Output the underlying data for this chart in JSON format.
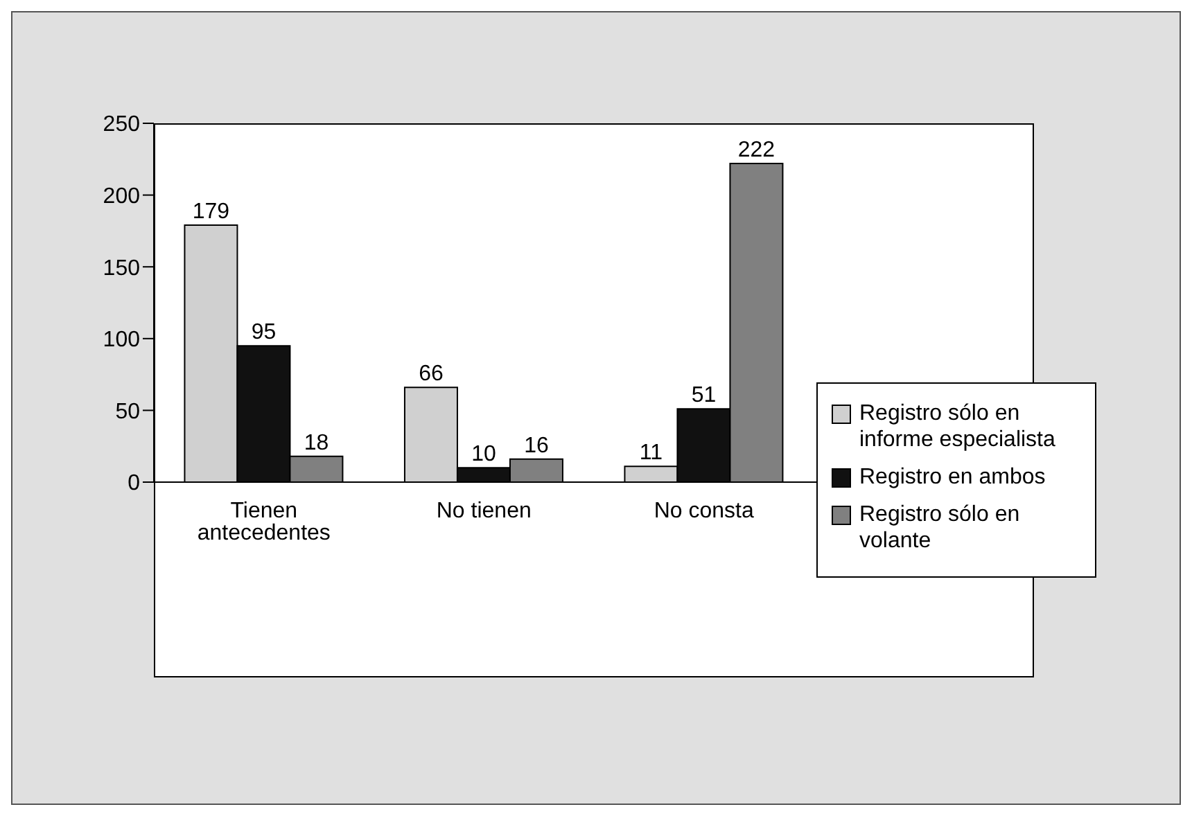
{
  "chart_data": {
    "type": "bar",
    "categories": [
      "Tienen antecedentes",
      "No tienen",
      "No consta",
      null
    ],
    "series": [
      {
        "name": "Registro sólo en informe especialista",
        "color": "#d0d0d0",
        "values": [
          179,
          66,
          11,
          null
        ]
      },
      {
        "name": "Registro en ambos",
        "color": "#111111",
        "values": [
          95,
          10,
          51,
          null
        ]
      },
      {
        "name": "Registro sólo en volante",
        "color": "#808080",
        "values": [
          18,
          16,
          222,
          null
        ]
      }
    ],
    "ylim": [
      0,
      250
    ],
    "yticks": [
      0,
      50,
      100,
      150,
      200,
      250
    ],
    "grid": false,
    "legend": "right",
    "data_labels": true
  }
}
